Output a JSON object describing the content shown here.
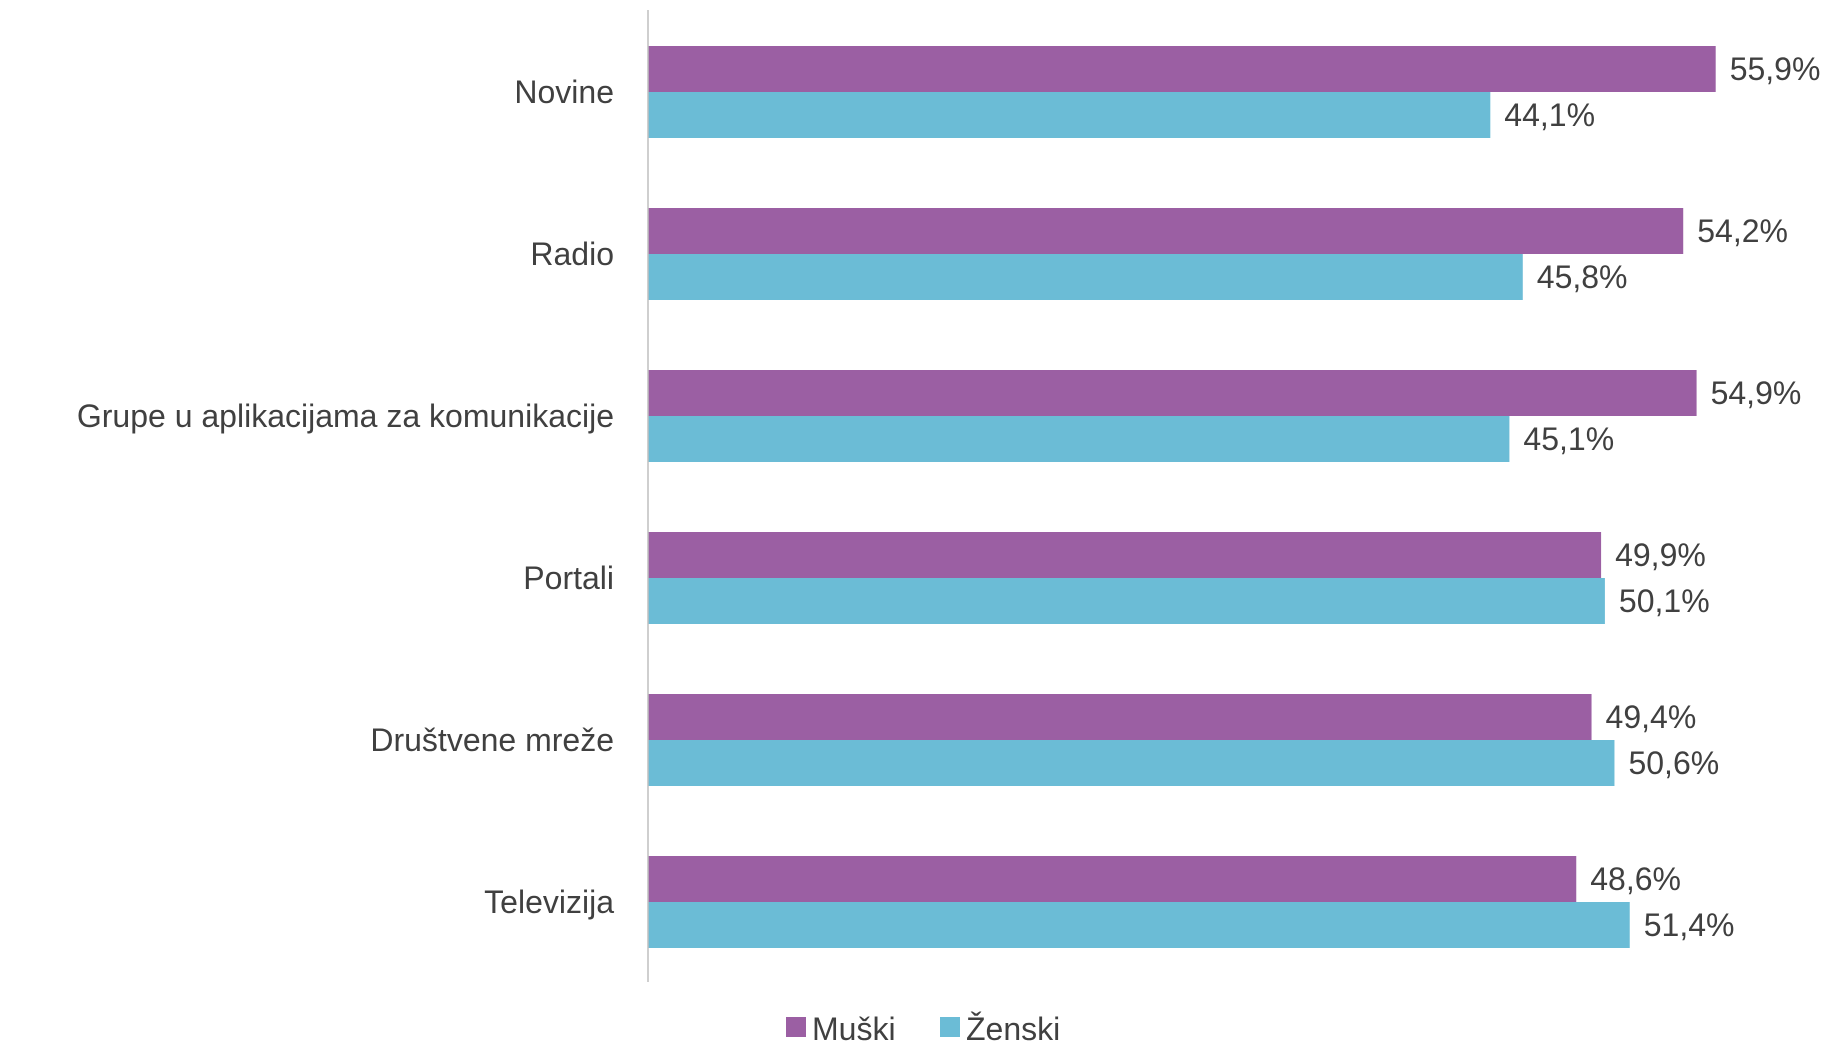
{
  "chart_data": {
    "type": "bar",
    "orientation": "horizontal",
    "categories": [
      "Novine",
      "Radio",
      "Grupe u aplikacijama za komunikacije",
      "Portali",
      "Društvene mreže",
      "Televizija"
    ],
    "series": [
      {
        "name": "Muški",
        "color": "#9b5fa3",
        "values": [
          55.9,
          54.2,
          54.9,
          49.9,
          49.4,
          48.6
        ],
        "labels": [
          "55,9%",
          "54,2%",
          "54,9%",
          "49,9%",
          "49,4%",
          "48,6%"
        ]
      },
      {
        "name": "Ženski",
        "color": "#6bbcd6",
        "values": [
          44.1,
          45.8,
          45.1,
          50.1,
          50.6,
          51.4
        ],
        "labels": [
          "44,1%",
          "45,8%",
          "45,1%",
          "50,1%",
          "50,6%",
          "51,4%"
        ]
      }
    ],
    "xlim": [
      0,
      60
    ],
    "title": "",
    "xlabel": "",
    "ylabel": "",
    "grid": false,
    "legend_position": "bottom"
  }
}
